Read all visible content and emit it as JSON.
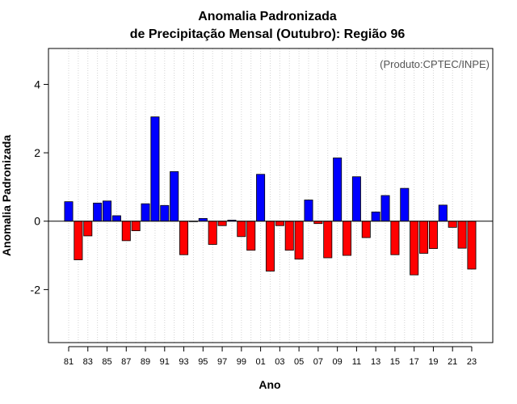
{
  "chart_data": {
    "type": "bar",
    "title": "Anomalia Padronizada",
    "subtitle": "de Precipitação Mensal (Outubro): Região 96",
    "xlabel": "Ano",
    "ylabel": "Anomalia Padronizada",
    "credit": "(Produto:CPTEC/INPE)",
    "ylim": [
      -3.55,
      5.05
    ],
    "yticks": [
      -2,
      0,
      2,
      4
    ],
    "xtick_labels": [
      "81",
      "83",
      "85",
      "87",
      "89",
      "91",
      "93",
      "95",
      "97",
      "99",
      "01",
      "03",
      "05",
      "07",
      "09",
      "11",
      "13",
      "15",
      "17",
      "19",
      "21",
      "23"
    ],
    "grid": "vertical dotted",
    "colors": {
      "positive": "#0000ff",
      "negative": "#ff0000",
      "grid": "#d3d3d3"
    },
    "categories": [
      "1981",
      "1982",
      "1983",
      "1984",
      "1985",
      "1986",
      "1987",
      "1988",
      "1989",
      "1990",
      "1991",
      "1992",
      "1993",
      "1994",
      "1995",
      "1996",
      "1997",
      "1998",
      "1999",
      "2000",
      "2001",
      "2002",
      "2003",
      "2004",
      "2005",
      "2006",
      "2007",
      "2008",
      "2009",
      "2010",
      "2011",
      "2012",
      "2013",
      "2014",
      "2015",
      "2016",
      "2017",
      "2018",
      "2019",
      "2020",
      "2021",
      "2022",
      "2023"
    ],
    "values": [
      0.57,
      -1.13,
      -0.43,
      0.53,
      0.59,
      0.16,
      -0.57,
      -0.28,
      0.51,
      3.05,
      0.46,
      1.45,
      -0.98,
      0.0,
      0.08,
      -0.68,
      -0.13,
      0.03,
      -0.45,
      -0.85,
      1.37,
      -1.46,
      -0.13,
      -0.85,
      -1.11,
      0.62,
      -0.07,
      -1.07,
      1.85,
      -1.0,
      1.3,
      -0.48,
      0.27,
      0.75,
      -0.98,
      0.96,
      -1.57,
      -0.94,
      -0.8,
      0.47,
      -0.18,
      -0.79,
      -1.4
    ]
  }
}
